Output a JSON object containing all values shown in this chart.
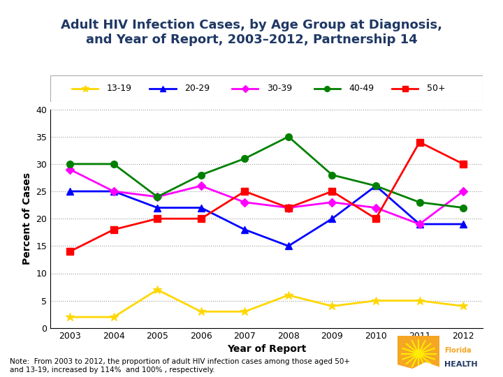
{
  "title": "Adult HIV Infection Cases, by Age Group at Diagnosis,\nand Year of Report, 2003–2012, Partnership 14",
  "xlabel": "Year of Report",
  "ylabel": "Percent of Cases",
  "years": [
    2003,
    2004,
    2005,
    2006,
    2007,
    2008,
    2009,
    2010,
    2011,
    2012
  ],
  "series": {
    "13-19": {
      "values": [
        2,
        2,
        7,
        3,
        3,
        6,
        4,
        5,
        5,
        4
      ],
      "color": "#FFD700",
      "marker": "*",
      "markersize": 9,
      "linewidth": 2
    },
    "20-29": {
      "values": [
        25,
        25,
        22,
        22,
        18,
        15,
        20,
        26,
        19,
        19
      ],
      "color": "#0000FF",
      "marker": "^",
      "markersize": 7,
      "linewidth": 2
    },
    "30-39": {
      "values": [
        29,
        25,
        24,
        26,
        23,
        22,
        23,
        22,
        19,
        25
      ],
      "color": "#FF00FF",
      "marker": "D",
      "markersize": 6,
      "linewidth": 2
    },
    "40-49": {
      "values": [
        30,
        30,
        24,
        28,
        31,
        35,
        28,
        26,
        23,
        22
      ],
      "color": "#008000",
      "marker": "o",
      "markersize": 7,
      "linewidth": 2
    },
    "50+": {
      "values": [
        14,
        18,
        20,
        20,
        25,
        22,
        25,
        20,
        34,
        30
      ],
      "color": "#FF0000",
      "marker": "s",
      "markersize": 7,
      "linewidth": 2
    }
  },
  "ylim": [
    0,
    40
  ],
  "yticks": [
    0,
    5,
    10,
    15,
    20,
    25,
    30,
    35,
    40
  ],
  "title_color": "#1F3864",
  "title_fontsize": 13,
  "axis_label_fontsize": 10,
  "tick_fontsize": 9,
  "legend_fontsize": 9,
  "note_text": "Note:  From 2003 to 2012, the proportion of adult HIV infection cases among those aged 50+\nand 13-19, increased by 114%  and 100% , respectively.",
  "background_color": "#FFFFFF",
  "grid_color": "#999999",
  "grid_style": "dotted"
}
